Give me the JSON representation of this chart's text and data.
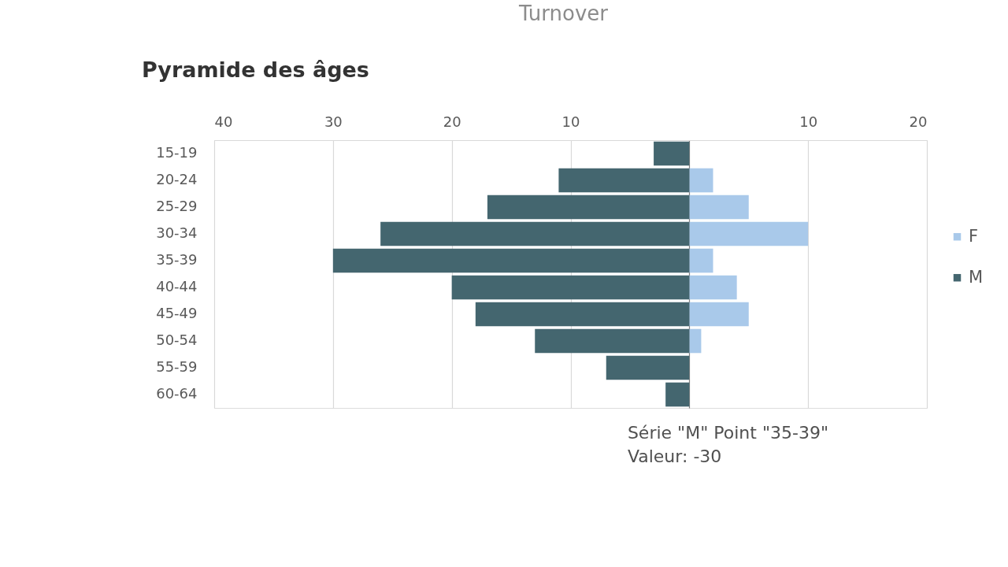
{
  "chart_data": {
    "type": "bar",
    "title": "Pyramide des âges",
    "orientation": "horizontal",
    "stacked": true,
    "categories": [
      "15-19",
      "20-24",
      "25-29",
      "30-34",
      "35-39",
      "40-44",
      "45-49",
      "50-54",
      "55-59",
      "60-64"
    ],
    "series": [
      {
        "name": "F",
        "color": "#a9c9ea",
        "values": [
          0,
          2,
          5,
          10,
          2,
          4,
          5,
          1,
          0,
          0
        ]
      },
      {
        "name": "M",
        "color": "#44666f",
        "values": [
          -3,
          -11,
          -17,
          -26,
          -30,
          -20,
          -18,
          -13,
          -7,
          -2
        ]
      }
    ],
    "xlim": [
      -40,
      20
    ],
    "xticks": [
      {
        "value": -40,
        "label": "40"
      },
      {
        "value": -30,
        "label": "30"
      },
      {
        "value": -20,
        "label": "20"
      },
      {
        "value": -10,
        "label": "10"
      },
      {
        "value": 0,
        "label": null
      },
      10,
      20
    ],
    "grid": "x",
    "legend": "right",
    "annotations": [
      "Turnover",
      "Série \"M\" Point \"35-39\"\nValeur: -30"
    ]
  }
}
